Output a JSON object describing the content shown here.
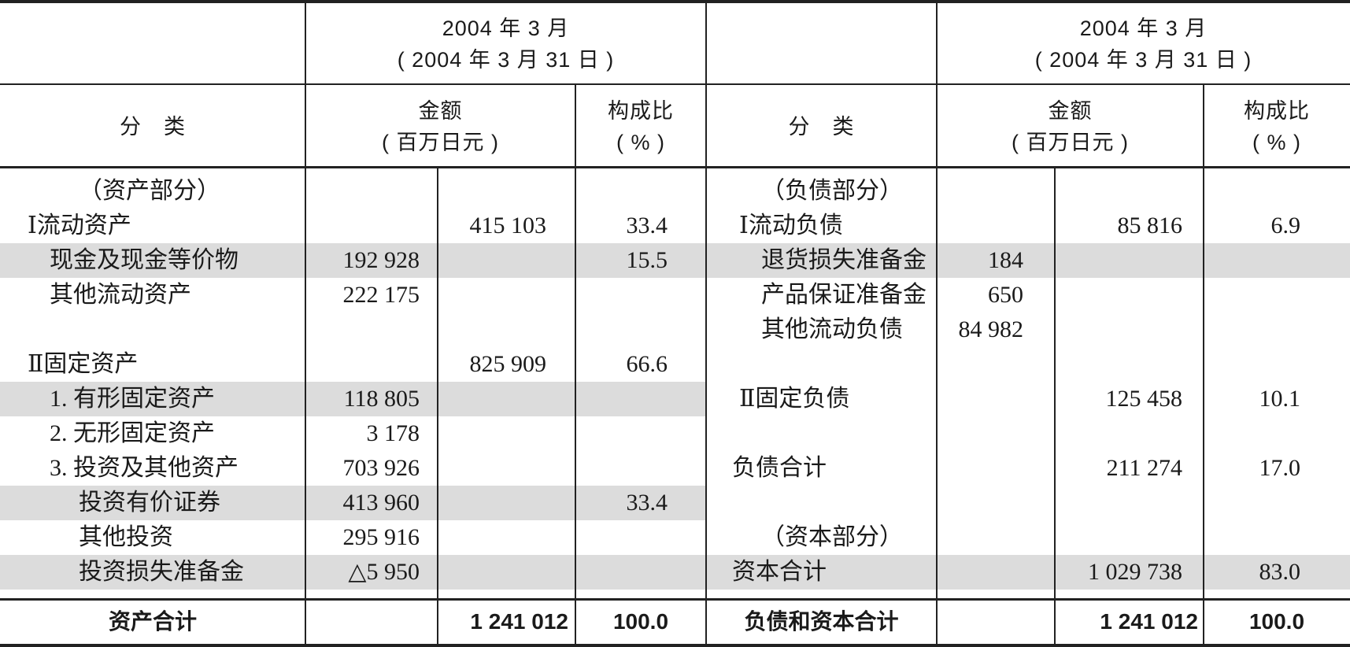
{
  "header": {
    "period_line1": "2004 年 3 月",
    "period_line2": "( 2004 年 3 月 31 日 )",
    "category": "分　类",
    "amount_line1": "金额",
    "amount_line2": "( 百万日元 )",
    "ratio_line1": "构成比",
    "ratio_line2": "( % )"
  },
  "assets": [
    {
      "label": "（资产部分）",
      "indent": 2,
      "detail": "",
      "subtotal": "",
      "ratio": ""
    },
    {
      "label": "Ⅰ流动资产",
      "indent": 0,
      "detail": "",
      "subtotal": "415 103",
      "ratio": "33.4"
    },
    {
      "label": "现金及现金等价物",
      "indent": 1,
      "detail": "192 928",
      "subtotal": "",
      "ratio": "15.5",
      "shaded": true
    },
    {
      "label": "其他流动资产",
      "indent": 1,
      "detail": "222 175",
      "subtotal": "",
      "ratio": ""
    },
    {
      "label": "",
      "indent": 0,
      "detail": "",
      "subtotal": "",
      "ratio": ""
    },
    {
      "label": "Ⅱ固定资产",
      "indent": 0,
      "detail": "",
      "subtotal": "825 909",
      "ratio": "66.6"
    },
    {
      "label": "1. 有形固定资产",
      "indent": 1,
      "detail": "118 805",
      "subtotal": "",
      "ratio": "",
      "shaded": true
    },
    {
      "label": "2. 无形固定资产",
      "indent": 1,
      "detail": "3 178",
      "subtotal": "",
      "ratio": ""
    },
    {
      "label": "3. 投资及其他资产",
      "indent": 1,
      "detail": "703 926",
      "subtotal": "",
      "ratio": ""
    },
    {
      "label": "投资有价证券",
      "indent": 2,
      "detail": "413 960",
      "subtotal": "",
      "ratio": "33.4",
      "shaded": true
    },
    {
      "label": "其他投资",
      "indent": 2,
      "detail": "295 916",
      "subtotal": "",
      "ratio": ""
    },
    {
      "label": "投资损失准备金",
      "indent": 2,
      "detail": "△5 950",
      "subtotal": "",
      "ratio": "",
      "shaded": true
    }
  ],
  "liabilities": [
    {
      "label": "（负债部分）",
      "indent": 2,
      "detail": "",
      "subtotal": "",
      "ratio": ""
    },
    {
      "label": "Ⅰ流动负债",
      "indent": 0,
      "detail": "",
      "subtotal": "85 816",
      "ratio": "6.9"
    },
    {
      "label": "退货损失准备金",
      "indent": 2,
      "detail": "184",
      "subtotal": "",
      "ratio": "",
      "shaded": true
    },
    {
      "label": "产品保证准备金",
      "indent": 2,
      "detail": "650",
      "subtotal": "",
      "ratio": ""
    },
    {
      "label": "其他流动负债",
      "indent": 2,
      "detail": "84 982",
      "subtotal": "",
      "ratio": ""
    },
    {
      "label": "",
      "indent": 0,
      "detail": "",
      "subtotal": "",
      "ratio": ""
    },
    {
      "label": "Ⅱ固定负债",
      "indent": 0,
      "detail": "",
      "subtotal": "125 458",
      "ratio": "10.1"
    },
    {
      "label": "",
      "indent": 0,
      "detail": "",
      "subtotal": "",
      "ratio": ""
    },
    {
      "label": "负债合计",
      "indent": -1,
      "detail": "",
      "subtotal": "211 274",
      "ratio": "17.0"
    },
    {
      "label": "",
      "indent": 0,
      "detail": "",
      "subtotal": "",
      "ratio": ""
    },
    {
      "label": "（资本部分）",
      "indent": 2,
      "detail": "",
      "subtotal": "",
      "ratio": ""
    },
    {
      "label": "资本合计",
      "indent": -1,
      "detail": "",
      "subtotal": "1 029 738",
      "ratio": "83.0",
      "shaded": true
    }
  ],
  "totals": {
    "assets_label": "资产合计",
    "assets_amount": "1 241 012",
    "assets_ratio": "100.0",
    "liab_label": "负债和资本合计",
    "liab_amount": "1 241 012",
    "liab_ratio": "100.0"
  },
  "colors": {
    "shade": "#dcdcdc",
    "rule": "#222222"
  }
}
